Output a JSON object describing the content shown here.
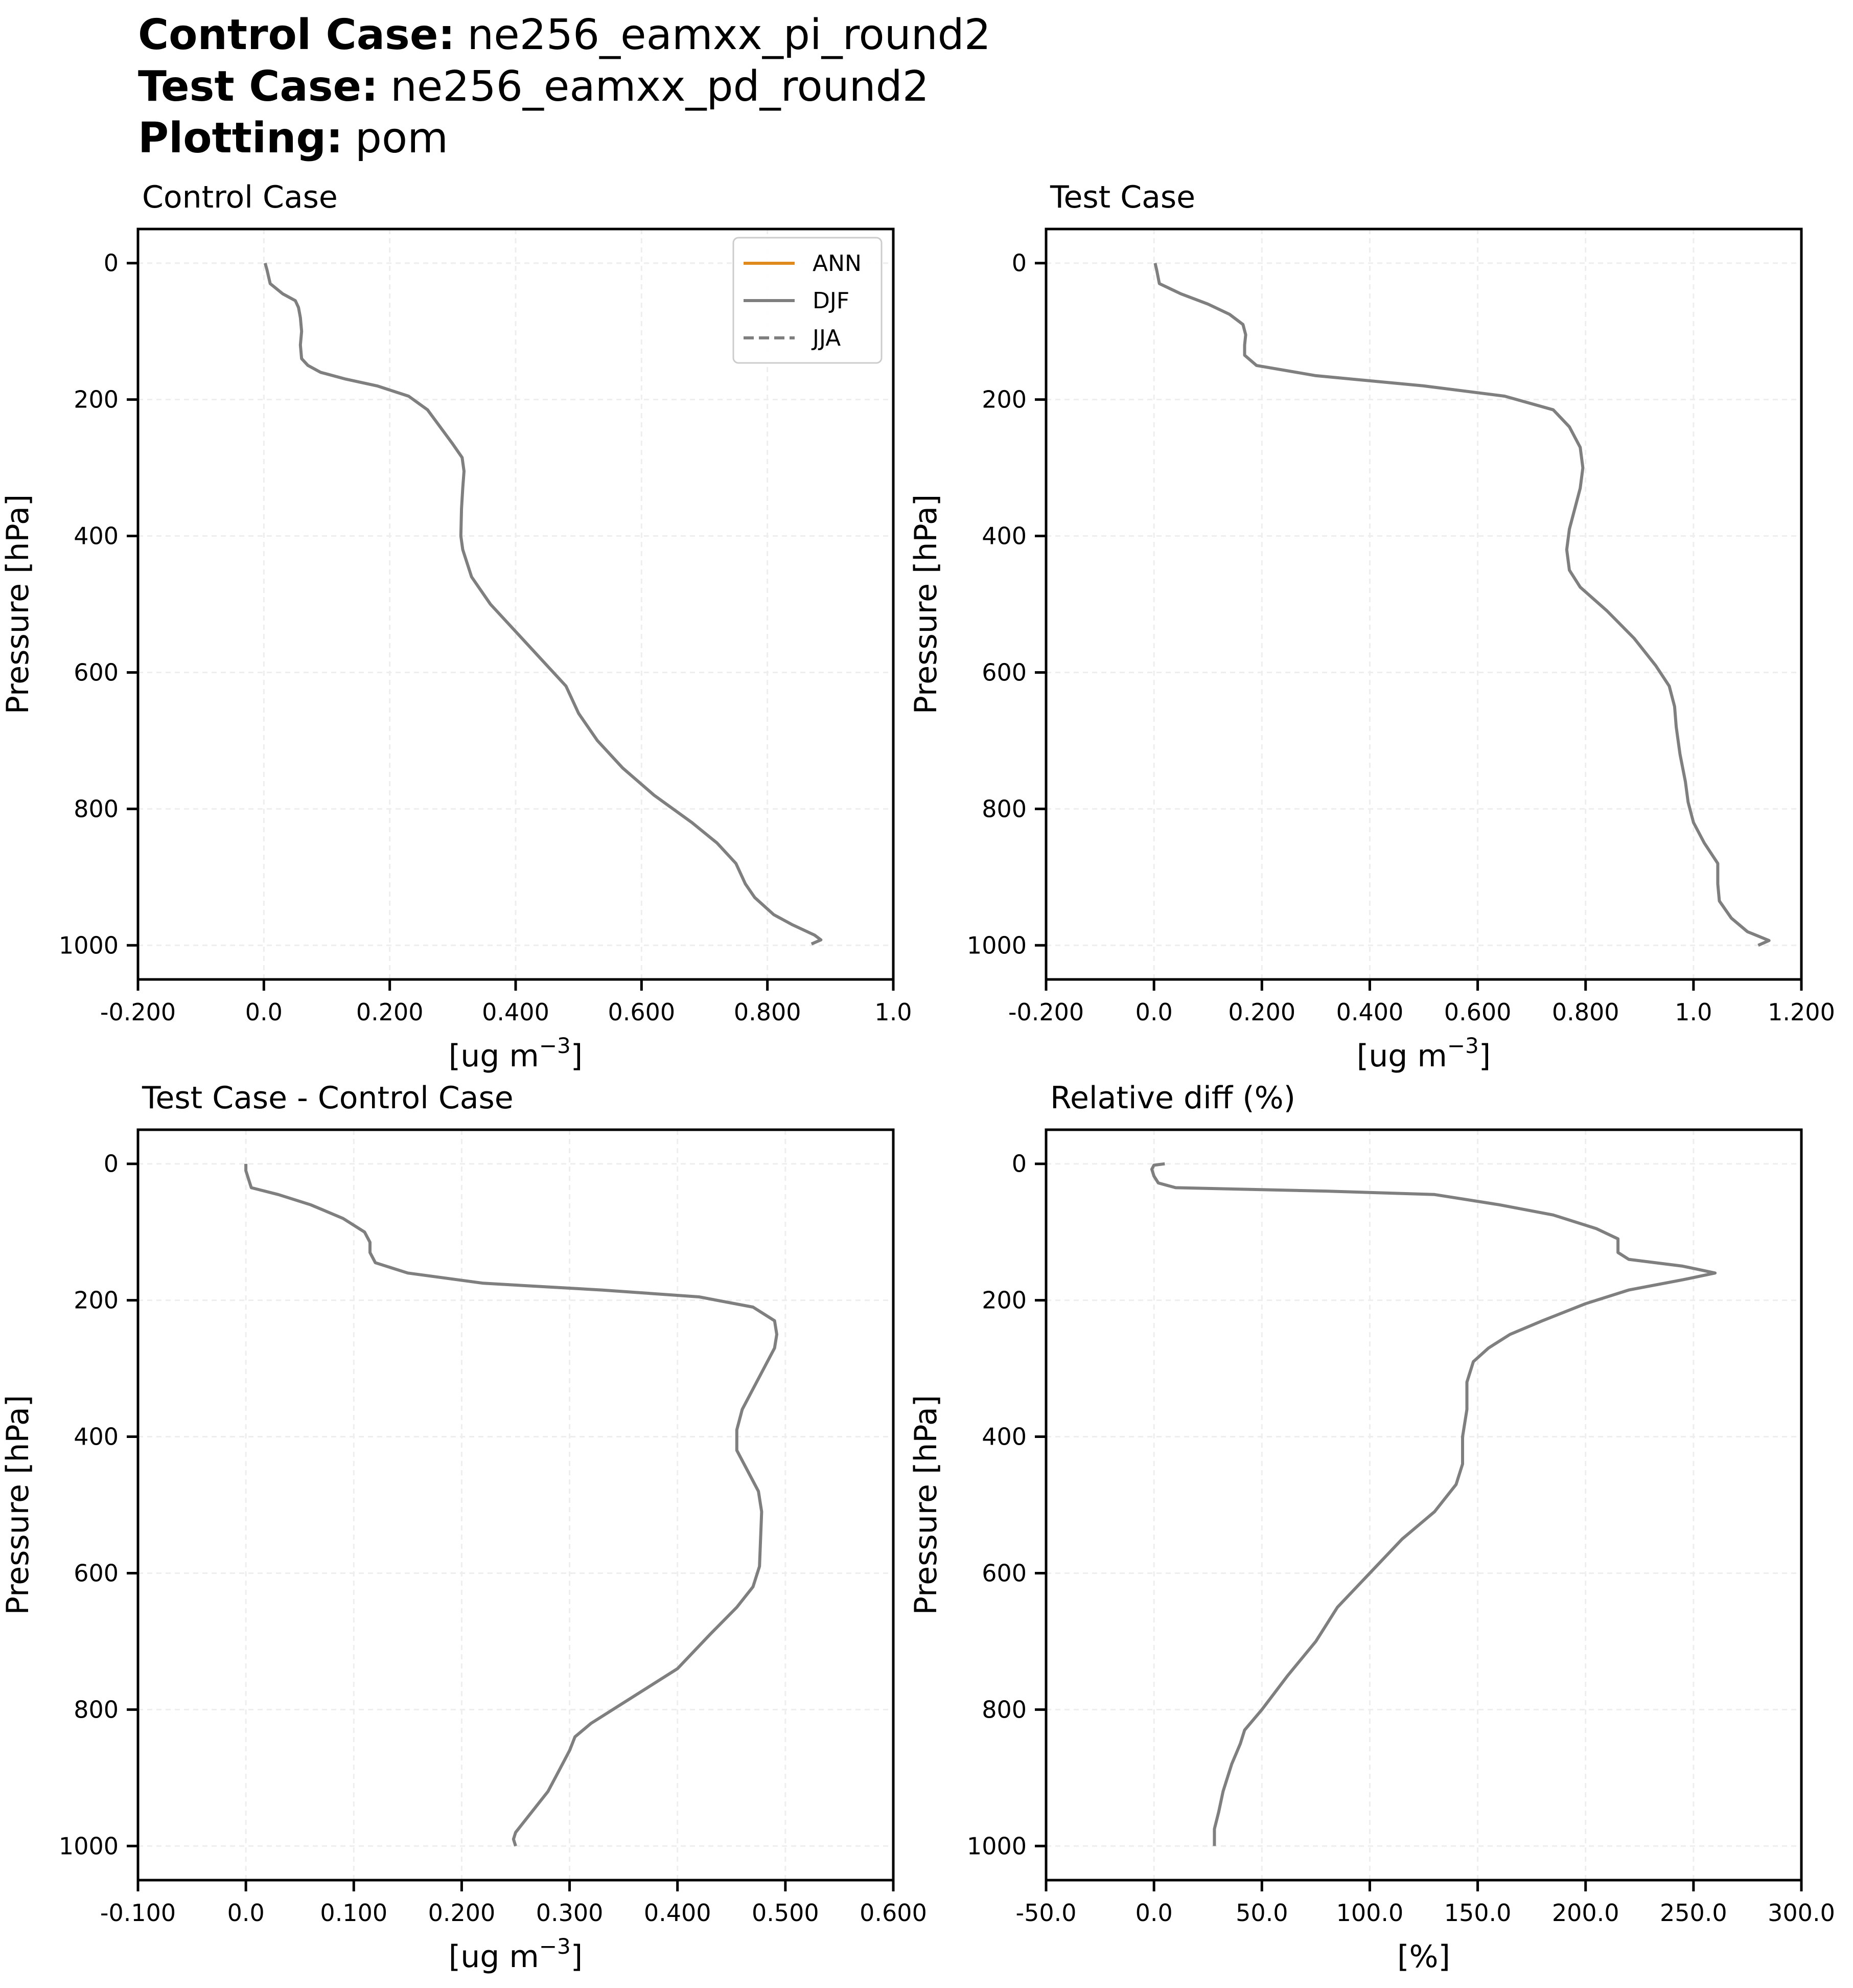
{
  "header": {
    "rows": [
      {
        "key": "Control Case",
        "colon": ":",
        "value": "ne256_eamxx_pi_round2"
      },
      {
        "key": "Test Case",
        "colon": ":",
        "value": "ne256_eamxx_pd_round2"
      },
      {
        "key": "Plotting",
        "colon": ":",
        "value": "pom"
      }
    ]
  },
  "colors": {
    "ANN": "#e08a1e",
    "DJF": "#7f7f7f",
    "JJA": "#7f7f7f",
    "axis": "#000000",
    "grid": "#eeeeee"
  },
  "chart_data": [
    {
      "type": "line",
      "title": "Control Case",
      "xlabel": "[ug m",
      "xlabel_sup": "−3",
      "xlabel_close": "]",
      "ylabel": "Pressure [hPa]",
      "xlim": [
        -0.2,
        1.0
      ],
      "ylim": [
        1050,
        -50
      ],
      "y_inverted": true,
      "xticks": [
        -0.2,
        0.0,
        0.2,
        0.4,
        0.6,
        0.8,
        1.0
      ],
      "xtick_labels": [
        "-0.200",
        "0.0",
        "0.200",
        "0.400",
        "0.600",
        "0.800",
        "1.0"
      ],
      "yticks": [
        0,
        200,
        400,
        600,
        800,
        1000
      ],
      "ytick_labels": [
        "0",
        "200",
        "400",
        "600",
        "800",
        "1000"
      ],
      "grid": true,
      "legend": {
        "position": "upper right",
        "entries": [
          {
            "label": "ANN",
            "style": "solid"
          },
          {
            "label": "DJF",
            "style": "solid"
          },
          {
            "label": "JJA",
            "style": "dashed"
          }
        ]
      },
      "series": [
        {
          "name": "DJF",
          "style": "solid",
          "x": [
            0.002,
            0.005,
            0.01,
            0.03,
            0.05,
            0.055,
            0.058,
            0.06,
            0.058,
            0.06,
            0.07,
            0.09,
            0.13,
            0.18,
            0.23,
            0.26,
            0.28,
            0.3,
            0.315,
            0.318,
            0.316,
            0.314,
            0.313,
            0.316,
            0.33,
            0.36,
            0.4,
            0.44,
            0.48,
            0.5,
            0.53,
            0.57,
            0.62,
            0.68,
            0.72,
            0.75,
            0.765,
            0.78,
            0.81,
            0.84,
            0.875,
            0.885,
            0.87
          ],
          "y": [
            0,
            10,
            30,
            45,
            55,
            65,
            80,
            100,
            120,
            140,
            150,
            160,
            170,
            180,
            195,
            215,
            240,
            265,
            285,
            305,
            330,
            360,
            400,
            420,
            460,
            500,
            540,
            580,
            620,
            660,
            700,
            740,
            780,
            820,
            850,
            880,
            910,
            930,
            955,
            970,
            985,
            992,
            998
          ]
        }
      ]
    },
    {
      "type": "line",
      "title": "Test Case",
      "xlabel": "[ug m",
      "xlabel_sup": "−3",
      "xlabel_close": "]",
      "ylabel": "Pressure [hPa]",
      "xlim": [
        -0.2,
        1.2
      ],
      "ylim": [
        1050,
        -50
      ],
      "y_inverted": true,
      "xticks": [
        -0.2,
        0.0,
        0.2,
        0.4,
        0.6,
        0.8,
        1.0,
        1.2
      ],
      "xtick_labels": [
        "-0.200",
        "0.0",
        "0.200",
        "0.400",
        "0.600",
        "0.800",
        "1.0",
        "1.200"
      ],
      "yticks": [
        0,
        200,
        400,
        600,
        800,
        1000
      ],
      "ytick_labels": [
        "0",
        "200",
        "400",
        "600",
        "800",
        "1000"
      ],
      "grid": true,
      "series": [
        {
          "name": "DJF",
          "style": "solid",
          "x": [
            0.002,
            0.005,
            0.01,
            0.05,
            0.1,
            0.14,
            0.165,
            0.17,
            0.168,
            0.168,
            0.19,
            0.3,
            0.5,
            0.65,
            0.74,
            0.77,
            0.79,
            0.795,
            0.79,
            0.78,
            0.77,
            0.765,
            0.77,
            0.79,
            0.84,
            0.89,
            0.93,
            0.955,
            0.965,
            0.968,
            0.975,
            0.985,
            0.99,
            1.0,
            1.02,
            1.045,
            1.045,
            1.048,
            1.07,
            1.1,
            1.14,
            1.12
          ],
          "y": [
            0,
            10,
            30,
            45,
            60,
            75,
            90,
            105,
            120,
            135,
            150,
            165,
            180,
            195,
            215,
            240,
            270,
            300,
            330,
            360,
            390,
            420,
            450,
            475,
            510,
            550,
            590,
            620,
            650,
            680,
            720,
            760,
            790,
            820,
            850,
            880,
            910,
            935,
            960,
            980,
            993,
            1000
          ]
        }
      ]
    },
    {
      "type": "line",
      "title": "Test Case - Control Case",
      "xlabel": "[ug m",
      "xlabel_sup": "−3",
      "xlabel_close": "]",
      "ylabel": "Pressure [hPa]",
      "xlim": [
        -0.1,
        0.6
      ],
      "ylim": [
        1050,
        -50
      ],
      "y_inverted": true,
      "xticks": [
        -0.1,
        0.0,
        0.1,
        0.2,
        0.3,
        0.4,
        0.5,
        0.6
      ],
      "xtick_labels": [
        "-0.100",
        "0.0",
        "0.100",
        "0.200",
        "0.300",
        "0.400",
        "0.500",
        "0.600"
      ],
      "yticks": [
        0,
        200,
        400,
        600,
        800,
        1000
      ],
      "ytick_labels": [
        "0",
        "200",
        "400",
        "600",
        "800",
        "1000"
      ],
      "grid": true,
      "series": [
        {
          "name": "DJF",
          "style": "solid",
          "x": [
            0.0,
            0.0,
            0.005,
            0.03,
            0.06,
            0.09,
            0.11,
            0.115,
            0.115,
            0.12,
            0.15,
            0.22,
            0.33,
            0.42,
            0.47,
            0.49,
            0.492,
            0.49,
            0.48,
            0.47,
            0.46,
            0.455,
            0.455,
            0.465,
            0.475,
            0.478,
            0.477,
            0.476,
            0.47,
            0.455,
            0.43,
            0.4,
            0.36,
            0.32,
            0.305,
            0.3,
            0.29,
            0.28,
            0.265,
            0.255,
            0.25,
            0.248,
            0.25
          ],
          "y": [
            0,
            10,
            35,
            45,
            60,
            80,
            100,
            115,
            130,
            145,
            160,
            175,
            185,
            195,
            210,
            230,
            250,
            270,
            300,
            330,
            360,
            390,
            420,
            450,
            480,
            510,
            550,
            590,
            620,
            650,
            690,
            740,
            780,
            820,
            840,
            860,
            890,
            920,
            950,
            970,
            980,
            990,
            1000
          ]
        }
      ]
    },
    {
      "type": "line",
      "title": "Relative diff (%)",
      "xlabel": "[%]",
      "ylabel": "Pressure [hPa]",
      "xlim": [
        -50,
        300
      ],
      "ylim": [
        1050,
        -50
      ],
      "y_inverted": true,
      "xticks": [
        -50,
        0,
        50,
        100,
        150,
        200,
        250,
        300
      ],
      "xtick_labels": [
        "-50.0",
        "0.0",
        "50.0",
        "100.0",
        "150.0",
        "200.0",
        "250.0",
        "300.0"
      ],
      "yticks": [
        0,
        200,
        400,
        600,
        800,
        1000
      ],
      "ytick_labels": [
        "0",
        "200",
        "400",
        "600",
        "800",
        "1000"
      ],
      "grid": true,
      "series": [
        {
          "name": "DJF",
          "style": "solid",
          "x": [
            5,
            0,
            -1,
            0,
            2,
            10,
            80,
            130,
            160,
            185,
            205,
            215,
            215,
            220,
            245,
            260,
            245,
            220,
            200,
            180,
            165,
            155,
            148,
            145,
            145,
            143,
            143,
            140,
            130,
            115,
            100,
            85,
            75,
            62,
            50,
            42,
            40,
            36,
            32,
            30,
            28,
            28
          ],
          "y": [
            0,
            2,
            8,
            18,
            28,
            35,
            40,
            45,
            60,
            75,
            95,
            110,
            130,
            140,
            150,
            160,
            170,
            185,
            205,
            230,
            250,
            270,
            290,
            320,
            360,
            400,
            440,
            470,
            510,
            550,
            600,
            650,
            700,
            750,
            800,
            830,
            850,
            880,
            920,
            950,
            975,
            1000
          ]
        }
      ]
    }
  ]
}
